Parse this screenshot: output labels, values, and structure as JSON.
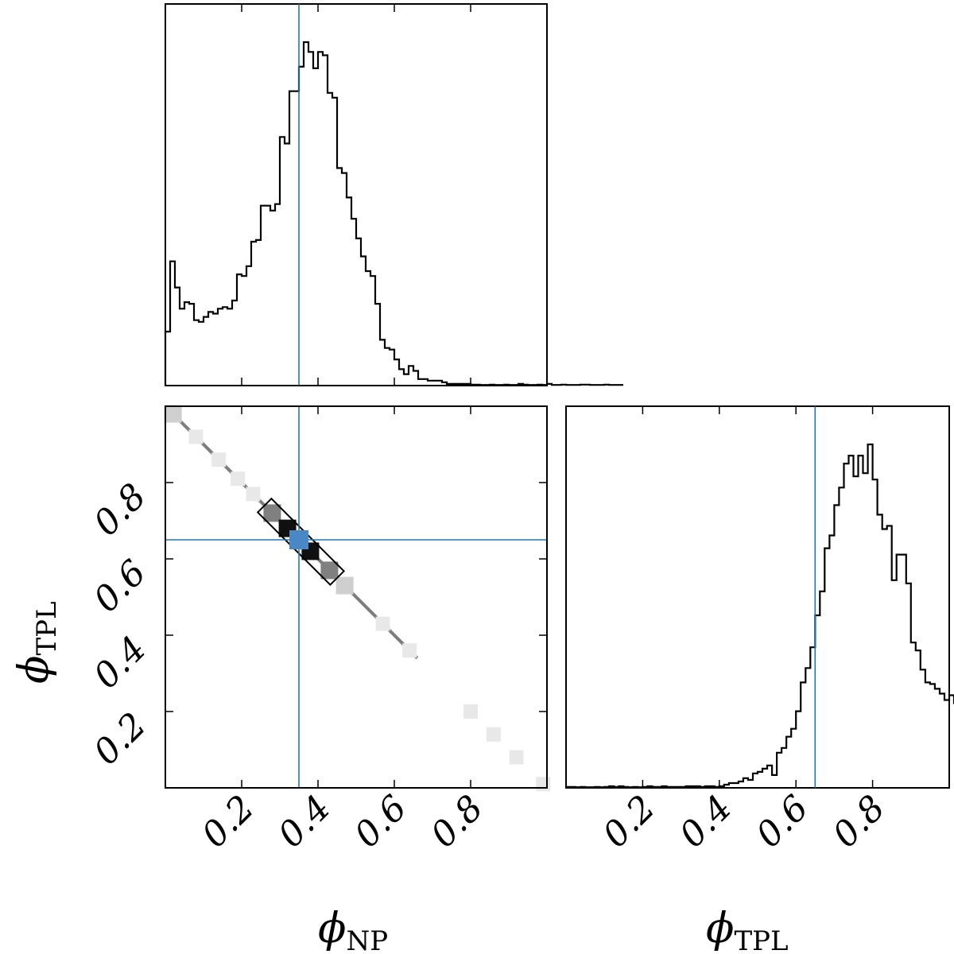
{
  "chart_data": {
    "type": "corner",
    "parameters": [
      {
        "label_symbol": "ϕ",
        "label_subscript": "NP"
      },
      {
        "label_symbol": "ϕ",
        "label_subscript": "TPL"
      }
    ],
    "truth_values": {
      "NP": 0.35,
      "TPL": 0.65
    },
    "truth_color": "#1f77b4",
    "xlim": [
      0,
      1
    ],
    "ylim": [
      0,
      1
    ],
    "ticks": [
      "0.2",
      "0.4",
      "0.6",
      "0.8"
    ],
    "panels": [
      {
        "id": "hist_NP",
        "type": "histogram",
        "bin_edges_start": 0.0,
        "bin_width": 0.0125,
        "counts": [
          165,
          380,
          300,
          235,
          255,
          250,
          200,
          195,
          210,
          225,
          220,
          235,
          240,
          235,
          260,
          340,
          335,
          365,
          440,
          445,
          550,
          550,
          535,
          555,
          760,
          740,
          900,
          900,
          975,
          1050,
          1020,
          970,
          1020,
          1010,
          895,
          880,
          665,
          650,
          575,
          510,
          450,
          395,
          350,
          335,
          250,
          140,
          115,
          110,
          80,
          50,
          35,
          60,
          45,
          20,
          20,
          15,
          15,
          15,
          10,
          5,
          5,
          5,
          5,
          5,
          3,
          3,
          2,
          2,
          3,
          2,
          2,
          3,
          2,
          2,
          5,
          3,
          2,
          2,
          3,
          2,
          5,
          2,
          2,
          3,
          2,
          2,
          2,
          3,
          3,
          2,
          2,
          2,
          3,
          2,
          2,
          2
        ]
      },
      {
        "id": "hist_TPL",
        "type": "histogram",
        "bin_edges_start": 0.0,
        "bin_width": 0.0125,
        "counts": [
          3,
          3,
          2,
          3,
          2,
          2,
          3,
          2,
          3,
          5,
          3,
          5,
          3,
          2,
          3,
          2,
          3,
          5,
          3,
          3,
          5,
          3,
          3,
          3,
          3,
          5,
          5,
          5,
          3,
          5,
          5,
          3,
          5,
          10,
          15,
          15,
          20,
          30,
          25,
          45,
          50,
          60,
          70,
          40,
          110,
          125,
          160,
          185,
          240,
          330,
          375,
          440,
          540,
          615,
          750,
          790,
          885,
          940,
          1015,
          1040,
          975,
          1040,
          985,
          1075,
          965,
          855,
          810,
          820,
          650,
          730,
          730,
          640,
          455,
          430,
          370,
          330,
          325,
          310,
          295,
          275,
          290,
          265,
          255,
          240,
          230,
          210,
          230,
          260,
          240,
          310,
          280,
          180
        ]
      },
      {
        "id": "joint_NP_TPL",
        "type": "2d-density",
        "relation": "NP + TPL = 1",
        "levels": [
          "faint",
          "light",
          "mid",
          "dark"
        ],
        "density_cells": [
          {
            "x": 0.02,
            "y": 0.98,
            "level": "light"
          },
          {
            "x": 0.08,
            "y": 0.92,
            "level": "faint"
          },
          {
            "x": 0.14,
            "y": 0.86,
            "level": "faint"
          },
          {
            "x": 0.19,
            "y": 0.81,
            "level": "faint"
          },
          {
            "x": 0.23,
            "y": 0.77,
            "level": "faint"
          },
          {
            "x": 0.28,
            "y": 0.72,
            "level": "mid"
          },
          {
            "x": 0.32,
            "y": 0.68,
            "level": "dark"
          },
          {
            "x": 0.38,
            "y": 0.62,
            "level": "dark"
          },
          {
            "x": 0.43,
            "y": 0.57,
            "level": "mid"
          },
          {
            "x": 0.47,
            "y": 0.53,
            "level": "light"
          },
          {
            "x": 0.57,
            "y": 0.43,
            "level": "faint"
          },
          {
            "x": 0.64,
            "y": 0.36,
            "level": "faint"
          },
          {
            "x": 0.8,
            "y": 0.2,
            "level": "faint"
          },
          {
            "x": 0.86,
            "y": 0.14,
            "level": "faint"
          },
          {
            "x": 0.92,
            "y": 0.08,
            "level": "faint"
          },
          {
            "x": 0.99,
            "y": 0.01,
            "level": "faint"
          }
        ],
        "contour_range_NP": [
          0.26,
          0.45
        ]
      }
    ]
  }
}
